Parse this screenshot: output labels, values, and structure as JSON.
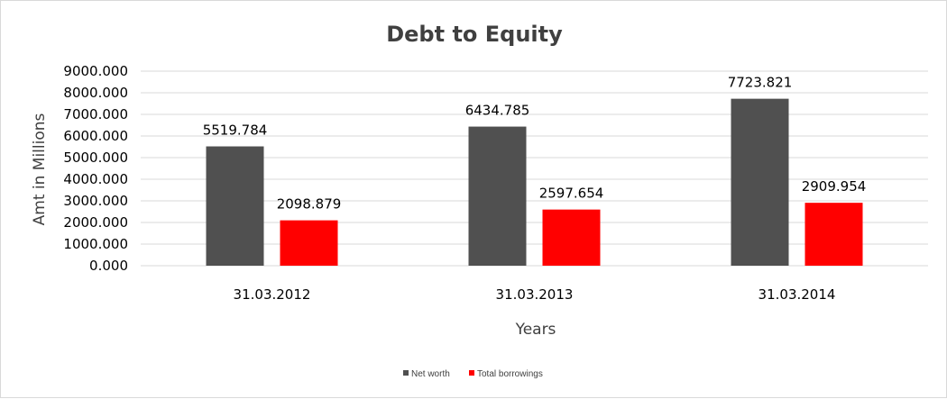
{
  "chart_data": {
    "type": "bar",
    "title": "Debt to Equity",
    "xlabel": "Years",
    "ylabel": "Amt in Millions",
    "categories": [
      "31.03.2012",
      "31.03.2013",
      "31.03.2014"
    ],
    "series": [
      {
        "name": "Net worth",
        "color": "#505050",
        "values": [
          5519.784,
          6434.785,
          7723.821
        ]
      },
      {
        "name": "Total borrowings",
        "color": "#ff0000",
        "values": [
          2098.879,
          2597.654,
          2909.954
        ]
      }
    ],
    "ylim": [
      0,
      9000
    ],
    "yticks": [
      "0.000",
      "1000.000",
      "2000.000",
      "3000.000",
      "4000.000",
      "5000.000",
      "6000.000",
      "7000.000",
      "8000.000",
      "9000.000"
    ],
    "data_labels": [
      [
        "5519.784",
        "6434.785",
        "7723.821"
      ],
      [
        "2098.879",
        "2597.654",
        "2909.954"
      ]
    ],
    "grid": true,
    "legend_position": "bottom"
  }
}
